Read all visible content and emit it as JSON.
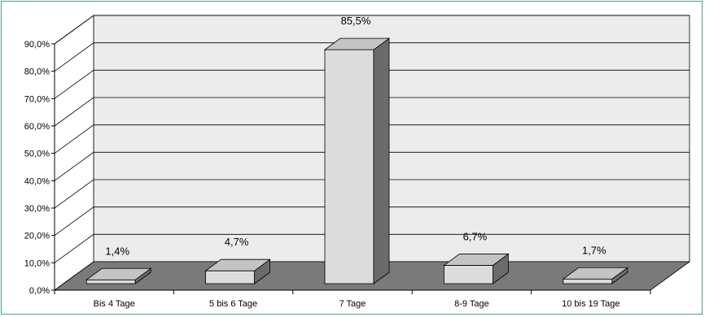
{
  "chart_data": {
    "type": "bar",
    "title": "",
    "xlabel": "",
    "ylabel": "",
    "categories": [
      "Bis 4 Tage",
      "5 bis 6 Tage",
      "7 Tage",
      "8-9 Tage",
      "10 bis 19 Tage"
    ],
    "values": [
      1.4,
      4.7,
      85.5,
      6.7,
      1.7
    ],
    "value_labels": [
      "1,4%",
      "4,7%",
      "85,5%",
      "6,7%",
      "1,7%"
    ],
    "ylim": [
      0,
      90
    ],
    "yticks": [
      0,
      10,
      20,
      30,
      40,
      50,
      60,
      70,
      80,
      90
    ],
    "ytick_labels": [
      "0,0%",
      "10,0%",
      "20,0%",
      "30,0%",
      "40,0%",
      "50,0%",
      "60,0%",
      "70,0%",
      "80,0%",
      "90,0%"
    ],
    "grid": true,
    "style": "3d-column",
    "colors": {
      "bar_front": "#dcdcdc",
      "bar_top": "#c4c4c4",
      "bar_side": "#6b6b6b",
      "floor": "#7a7a7a",
      "back_wall": "#ececec",
      "side_wall": "#ffffff",
      "border": "#4f9b8a"
    }
  }
}
